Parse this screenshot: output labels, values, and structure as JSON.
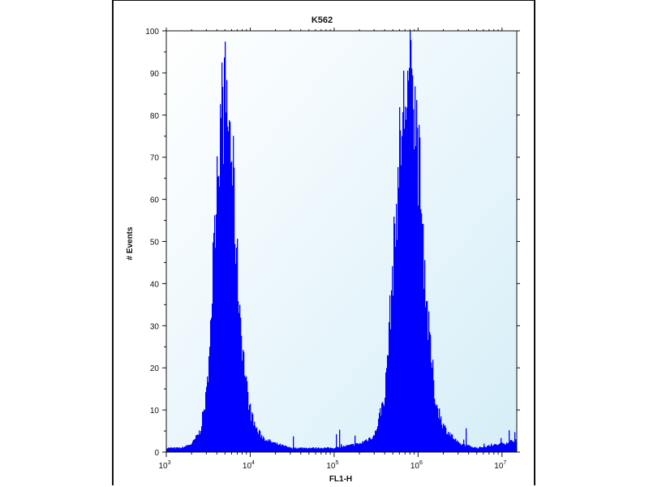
{
  "chart_data": {
    "type": "area",
    "title": "K562",
    "xlabel": "FL1-H",
    "ylabel": "# Events",
    "x_scale": "log",
    "xlim": [
      1000,
      15000000
    ],
    "ylim": [
      0,
      100
    ],
    "grid": false,
    "legend": "none",
    "fill_color": "#0000ff",
    "plot_background": [
      "#ffffff",
      "#d6eef8"
    ],
    "x_ticks": [
      {
        "base": "10",
        "exp": "3",
        "value": 1000
      },
      {
        "base": "10",
        "exp": "4",
        "value": 10000
      },
      {
        "base": "10",
        "exp": "5",
        "value": 100000
      },
      {
        "base": "10",
        "exp": "6",
        "value": 1000000
      },
      {
        "base": "10",
        "exp": "7",
        "value": 10000000
      }
    ],
    "y_ticks": [
      "0",
      "10",
      "20",
      "30",
      "40",
      "50",
      "60",
      "70",
      "80",
      "90",
      "100"
    ],
    "series": [
      {
        "x": [
          1000,
          1500,
          2000,
          2500,
          3000,
          3500,
          4000,
          4500,
          5000,
          5500,
          6000,
          6500,
          7000,
          8000,
          9000,
          10000,
          12000,
          15000,
          20000,
          30000,
          50000,
          100000,
          200000,
          300000,
          400000,
          500000,
          600000,
          700000,
          800000,
          900000,
          1000000,
          1100000,
          1300000,
          1600000,
          2000000,
          3000000,
          5000000,
          10000000,
          15000000
        ],
        "y": [
          1,
          1,
          2,
          5,
          14,
          40,
          70,
          80,
          84,
          78,
          70,
          55,
          42,
          25,
          15,
          9,
          5,
          3,
          2,
          1,
          1,
          1,
          2,
          4,
          14,
          45,
          72,
          85,
          88,
          83,
          70,
          55,
          30,
          12,
          6,
          2,
          1,
          2,
          3
        ]
      }
    ]
  }
}
